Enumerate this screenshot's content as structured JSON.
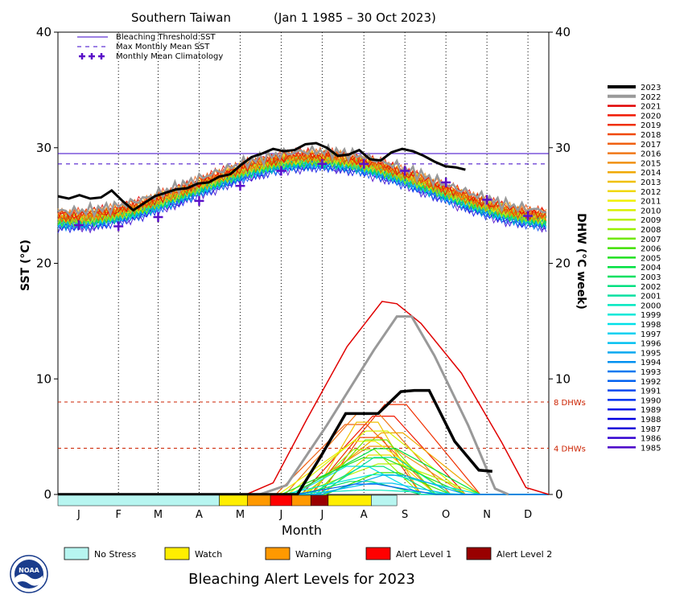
{
  "colors": {
    "threshold": "#3a00c8",
    "max_mean": "#3a00c8",
    "climatology": "#5a10c8",
    "dhw_guides": "#cc2200",
    "no_stress": "#b7f5f0",
    "watch": "#ffee00",
    "warning": "#ff9900",
    "alert1": "#ff0000",
    "alert2": "#990000"
  },
  "chart_data": {
    "type": "line",
    "title_left": "Southern Taiwan",
    "title_right": "(Jan 1 1985 – 30 Oct 2023)",
    "xlabel": "Month",
    "ylabel_left": "SST (°C)",
    "ylabel_right": "DHW (°C week)",
    "xlim_days": [
      0,
      365
    ],
    "ylim": [
      0,
      40
    ],
    "y_ticks": [
      0,
      10,
      20,
      30,
      40
    ],
    "x_tick_labels": [
      "J",
      "F",
      "M",
      "A",
      "M",
      "J",
      "J",
      "A",
      "S",
      "O",
      "N",
      "D"
    ],
    "dhw_guides": [
      {
        "value": 8,
        "label": "8 DHWs"
      },
      {
        "value": 4,
        "label": "4 DHWs"
      }
    ],
    "bleaching_threshold_sst": 29.5,
    "max_monthly_mean_sst": 28.6,
    "climatology": {
      "name": "Monthly Mean Climatology",
      "values": [
        23.3,
        23.2,
        24.0,
        25.4,
        26.7,
        28.0,
        28.6,
        28.6,
        28.0,
        27.0,
        25.5,
        24.1
      ]
    },
    "legend_lines": [
      {
        "name": "Bleaching Threshold SST",
        "style": "solid"
      },
      {
        "name": "Max Monthly Mean SST",
        "style": "dashed"
      },
      {
        "name": "Monthly Mean Climatology",
        "style": "crosses"
      }
    ],
    "years": [
      "2023",
      "2022",
      "2021",
      "2020",
      "2019",
      "2018",
      "2017",
      "2016",
      "2015",
      "2014",
      "2013",
      "2012",
      "2011",
      "2010",
      "2009",
      "2008",
      "2007",
      "2006",
      "2005",
      "2004",
      "2003",
      "2002",
      "2001",
      "2000",
      "1999",
      "1998",
      "1997",
      "1996",
      "1995",
      "1994",
      "1993",
      "1992",
      "1991",
      "1990",
      "1989",
      "1988",
      "1987",
      "1986",
      "1985"
    ],
    "year_colors": [
      "#000000",
      "#999999",
      "#e00000",
      "#f01800",
      "#f03000",
      "#f04800",
      "#f06010",
      "#f07818",
      "#f09010",
      "#f0a800",
      "#f0c000",
      "#f0d800",
      "#f0f000",
      "#d8f000",
      "#b8f000",
      "#98f000",
      "#70e800",
      "#40e000",
      "#20e020",
      "#00e040",
      "#00e060",
      "#00e080",
      "#00e0a0",
      "#00e8c0",
      "#00e8d8",
      "#00e0e8",
      "#00d0f0",
      "#00c0f0",
      "#00a8f0",
      "#0090f0",
      "#0078f0",
      "#0060f0",
      "#0048f0",
      "#0030f0",
      "#0018e8",
      "#0000e0",
      "#1800d8",
      "#3000d0",
      "#4800c8"
    ],
    "sst_2023": [
      [
        0,
        25.8
      ],
      [
        8,
        25.6
      ],
      [
        16,
        25.9
      ],
      [
        24,
        25.6
      ],
      [
        32,
        25.7
      ],
      [
        40,
        26.3
      ],
      [
        48,
        25.4
      ],
      [
        56,
        24.6
      ],
      [
        64,
        25.2
      ],
      [
        72,
        25.8
      ],
      [
        80,
        26.1
      ],
      [
        88,
        26.4
      ],
      [
        96,
        26.5
      ],
      [
        104,
        26.9
      ],
      [
        112,
        27.0
      ],
      [
        120,
        27.5
      ],
      [
        128,
        27.7
      ],
      [
        136,
        28.5
      ],
      [
        144,
        29.2
      ],
      [
        152,
        29.5
      ],
      [
        160,
        29.9
      ],
      [
        168,
        29.7
      ],
      [
        176,
        29.8
      ],
      [
        184,
        30.3
      ],
      [
        192,
        30.4
      ],
      [
        200,
        30.0
      ],
      [
        208,
        29.3
      ],
      [
        216,
        29.4
      ],
      [
        224,
        29.8
      ],
      [
        232,
        29.0
      ],
      [
        240,
        28.9
      ],
      [
        248,
        29.6
      ],
      [
        256,
        29.9
      ],
      [
        264,
        29.7
      ],
      [
        272,
        29.3
      ],
      [
        280,
        28.8
      ],
      [
        288,
        28.4
      ],
      [
        296,
        28.3
      ],
      [
        303,
        28.1
      ]
    ],
    "dhw_2023": [
      [
        0,
        0
      ],
      [
        100,
        0
      ],
      [
        160,
        0
      ],
      [
        178,
        0
      ],
      [
        195,
        3.2
      ],
      [
        214,
        7.0
      ],
      [
        238,
        7.0
      ],
      [
        255,
        8.9
      ],
      [
        265,
        9.0
      ],
      [
        276,
        9.0
      ],
      [
        295,
        4.6
      ],
      [
        313,
        2.1
      ],
      [
        323,
        2.0
      ]
    ],
    "dhw_2022": [
      [
        0,
        0
      ],
      [
        150,
        0
      ],
      [
        170,
        0.8
      ],
      [
        200,
        6.0
      ],
      [
        235,
        12.5
      ],
      [
        252,
        15.4
      ],
      [
        263,
        15.4
      ],
      [
        280,
        12.0
      ],
      [
        305,
        6.0
      ],
      [
        325,
        0.5
      ],
      [
        335,
        0
      ]
    ],
    "dhw_2021": [
      [
        0,
        0
      ],
      [
        140,
        0
      ],
      [
        160,
        1.0
      ],
      [
        185,
        6.5
      ],
      [
        215,
        12.8
      ],
      [
        241,
        16.7
      ],
      [
        252,
        16.5
      ],
      [
        270,
        14.8
      ],
      [
        300,
        10.5
      ],
      [
        330,
        4.5
      ],
      [
        348,
        0.6
      ],
      [
        365,
        0
      ]
    ],
    "alert_bar": [
      {
        "level": "no_stress",
        "start_day": 0,
        "end_day": 120
      },
      {
        "level": "watch",
        "start_day": 120,
        "end_day": 141
      },
      {
        "level": "warning",
        "start_day": 141,
        "end_day": 158
      },
      {
        "level": "alert1",
        "start_day": 158,
        "end_day": 174
      },
      {
        "level": "warning",
        "start_day": 174,
        "end_day": 188
      },
      {
        "level": "alert2",
        "start_day": 188,
        "end_day": 201
      },
      {
        "level": "watch",
        "start_day": 201,
        "end_day": 233
      },
      {
        "level": "no_stress",
        "start_day": 233,
        "end_day": 252
      }
    ],
    "alert_legend": [
      {
        "level": "no_stress",
        "label": "No Stress"
      },
      {
        "level": "watch",
        "label": "Watch"
      },
      {
        "level": "warning",
        "label": "Warning"
      },
      {
        "level": "alert1",
        "label": "Alert Level 1"
      },
      {
        "level": "alert2",
        "label": "Alert Level 2"
      }
    ],
    "footer_title": "Bleaching Alert Levels for 2023",
    "logo_text": "NOAA"
  }
}
